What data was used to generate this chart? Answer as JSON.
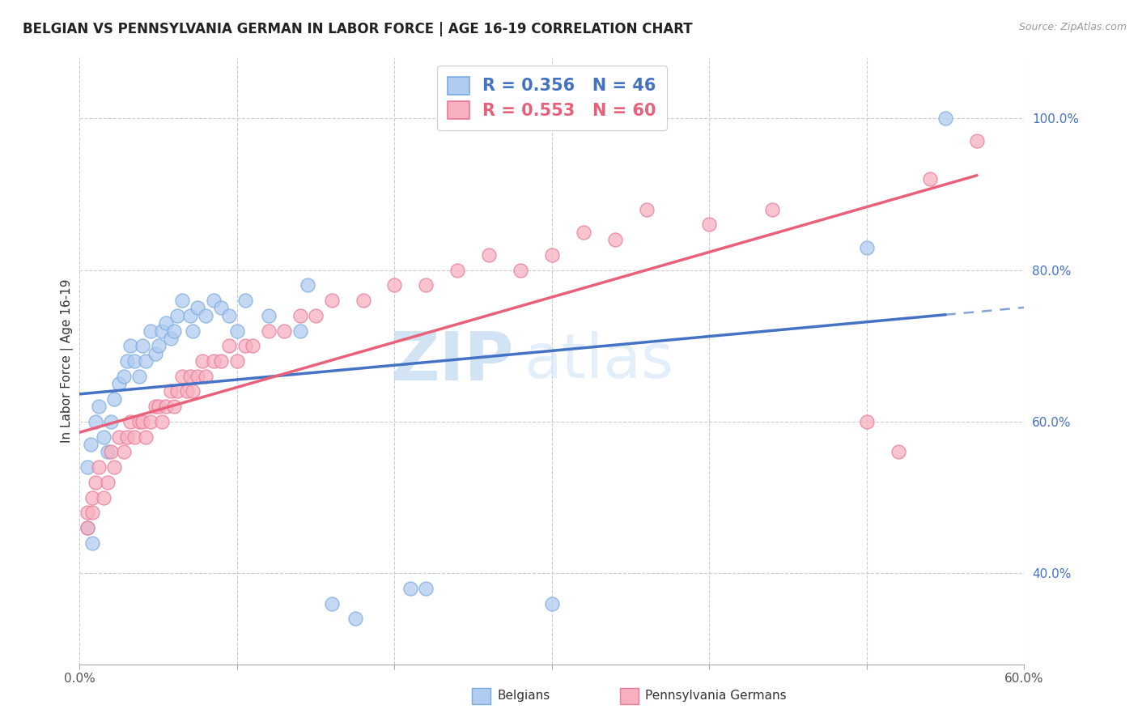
{
  "title": "BELGIAN VS PENNSYLVANIA GERMAN IN LABOR FORCE | AGE 16-19 CORRELATION CHART",
  "source": "Source: ZipAtlas.com",
  "ylabel": "In Labor Force | Age 16-19",
  "xlim": [
    0.0,
    0.6
  ],
  "ylim": [
    0.28,
    1.08
  ],
  "xtick_positions": [
    0.0,
    0.1,
    0.2,
    0.3,
    0.4,
    0.5,
    0.6
  ],
  "xtick_labels_show": [
    "0.0%",
    "",
    "",
    "",
    "",
    "",
    "60.0%"
  ],
  "ytick_positions": [
    0.4,
    0.6,
    0.8,
    1.0
  ],
  "ytick_labels": [
    "40.0%",
    "60.0%",
    "80.0%",
    "100.0%"
  ],
  "belgian_color": "#b0ccf0",
  "belgian_edge_color": "#7aaae0",
  "penn_color": "#f8b0c0",
  "penn_edge_color": "#e87898",
  "belgian_line_color": "#4472c4",
  "penn_line_color": "#e8607a",
  "r_belgian": 0.356,
  "n_belgian": 46,
  "r_penn": 0.553,
  "n_penn": 60,
  "watermark_zip": "ZIP",
  "watermark_atlas": "atlas",
  "legend_label_belgian": "Belgians",
  "legend_label_penn": "Pennsylvania Germans",
  "belgian_x": [
    0.005,
    0.007,
    0.01,
    0.012,
    0.015,
    0.018,
    0.02,
    0.022,
    0.025,
    0.028,
    0.03,
    0.032,
    0.035,
    0.038,
    0.04,
    0.042,
    0.045,
    0.048,
    0.05,
    0.052,
    0.055,
    0.058,
    0.06,
    0.062,
    0.065,
    0.07,
    0.072,
    0.075,
    0.08,
    0.085,
    0.09,
    0.095,
    0.1,
    0.105,
    0.12,
    0.14,
    0.145,
    0.16,
    0.175,
    0.21,
    0.005,
    0.008,
    0.22,
    0.3,
    0.5,
    0.55
  ],
  "belgian_y": [
    0.54,
    0.57,
    0.6,
    0.62,
    0.58,
    0.56,
    0.6,
    0.63,
    0.65,
    0.66,
    0.68,
    0.7,
    0.68,
    0.66,
    0.7,
    0.68,
    0.72,
    0.69,
    0.7,
    0.72,
    0.73,
    0.71,
    0.72,
    0.74,
    0.76,
    0.74,
    0.72,
    0.75,
    0.74,
    0.76,
    0.75,
    0.74,
    0.72,
    0.76,
    0.74,
    0.72,
    0.78,
    0.36,
    0.34,
    0.38,
    0.46,
    0.44,
    0.38,
    0.36,
    0.83,
    1.0
  ],
  "penn_x": [
    0.005,
    0.008,
    0.01,
    0.012,
    0.015,
    0.018,
    0.02,
    0.022,
    0.025,
    0.028,
    0.03,
    0.032,
    0.035,
    0.038,
    0.04,
    0.042,
    0.045,
    0.048,
    0.05,
    0.052,
    0.055,
    0.058,
    0.06,
    0.062,
    0.065,
    0.068,
    0.07,
    0.072,
    0.075,
    0.078,
    0.08,
    0.085,
    0.09,
    0.095,
    0.1,
    0.105,
    0.11,
    0.12,
    0.13,
    0.14,
    0.15,
    0.16,
    0.18,
    0.2,
    0.22,
    0.24,
    0.26,
    0.28,
    0.3,
    0.32,
    0.34,
    0.36,
    0.005,
    0.008,
    0.4,
    0.44,
    0.5,
    0.52,
    0.54,
    0.57
  ],
  "penn_y": [
    0.48,
    0.5,
    0.52,
    0.54,
    0.5,
    0.52,
    0.56,
    0.54,
    0.58,
    0.56,
    0.58,
    0.6,
    0.58,
    0.6,
    0.6,
    0.58,
    0.6,
    0.62,
    0.62,
    0.6,
    0.62,
    0.64,
    0.62,
    0.64,
    0.66,
    0.64,
    0.66,
    0.64,
    0.66,
    0.68,
    0.66,
    0.68,
    0.68,
    0.7,
    0.68,
    0.7,
    0.7,
    0.72,
    0.72,
    0.74,
    0.74,
    0.76,
    0.76,
    0.78,
    0.78,
    0.8,
    0.82,
    0.8,
    0.82,
    0.85,
    0.84,
    0.88,
    0.46,
    0.48,
    0.86,
    0.88,
    0.6,
    0.56,
    0.92,
    0.97
  ]
}
